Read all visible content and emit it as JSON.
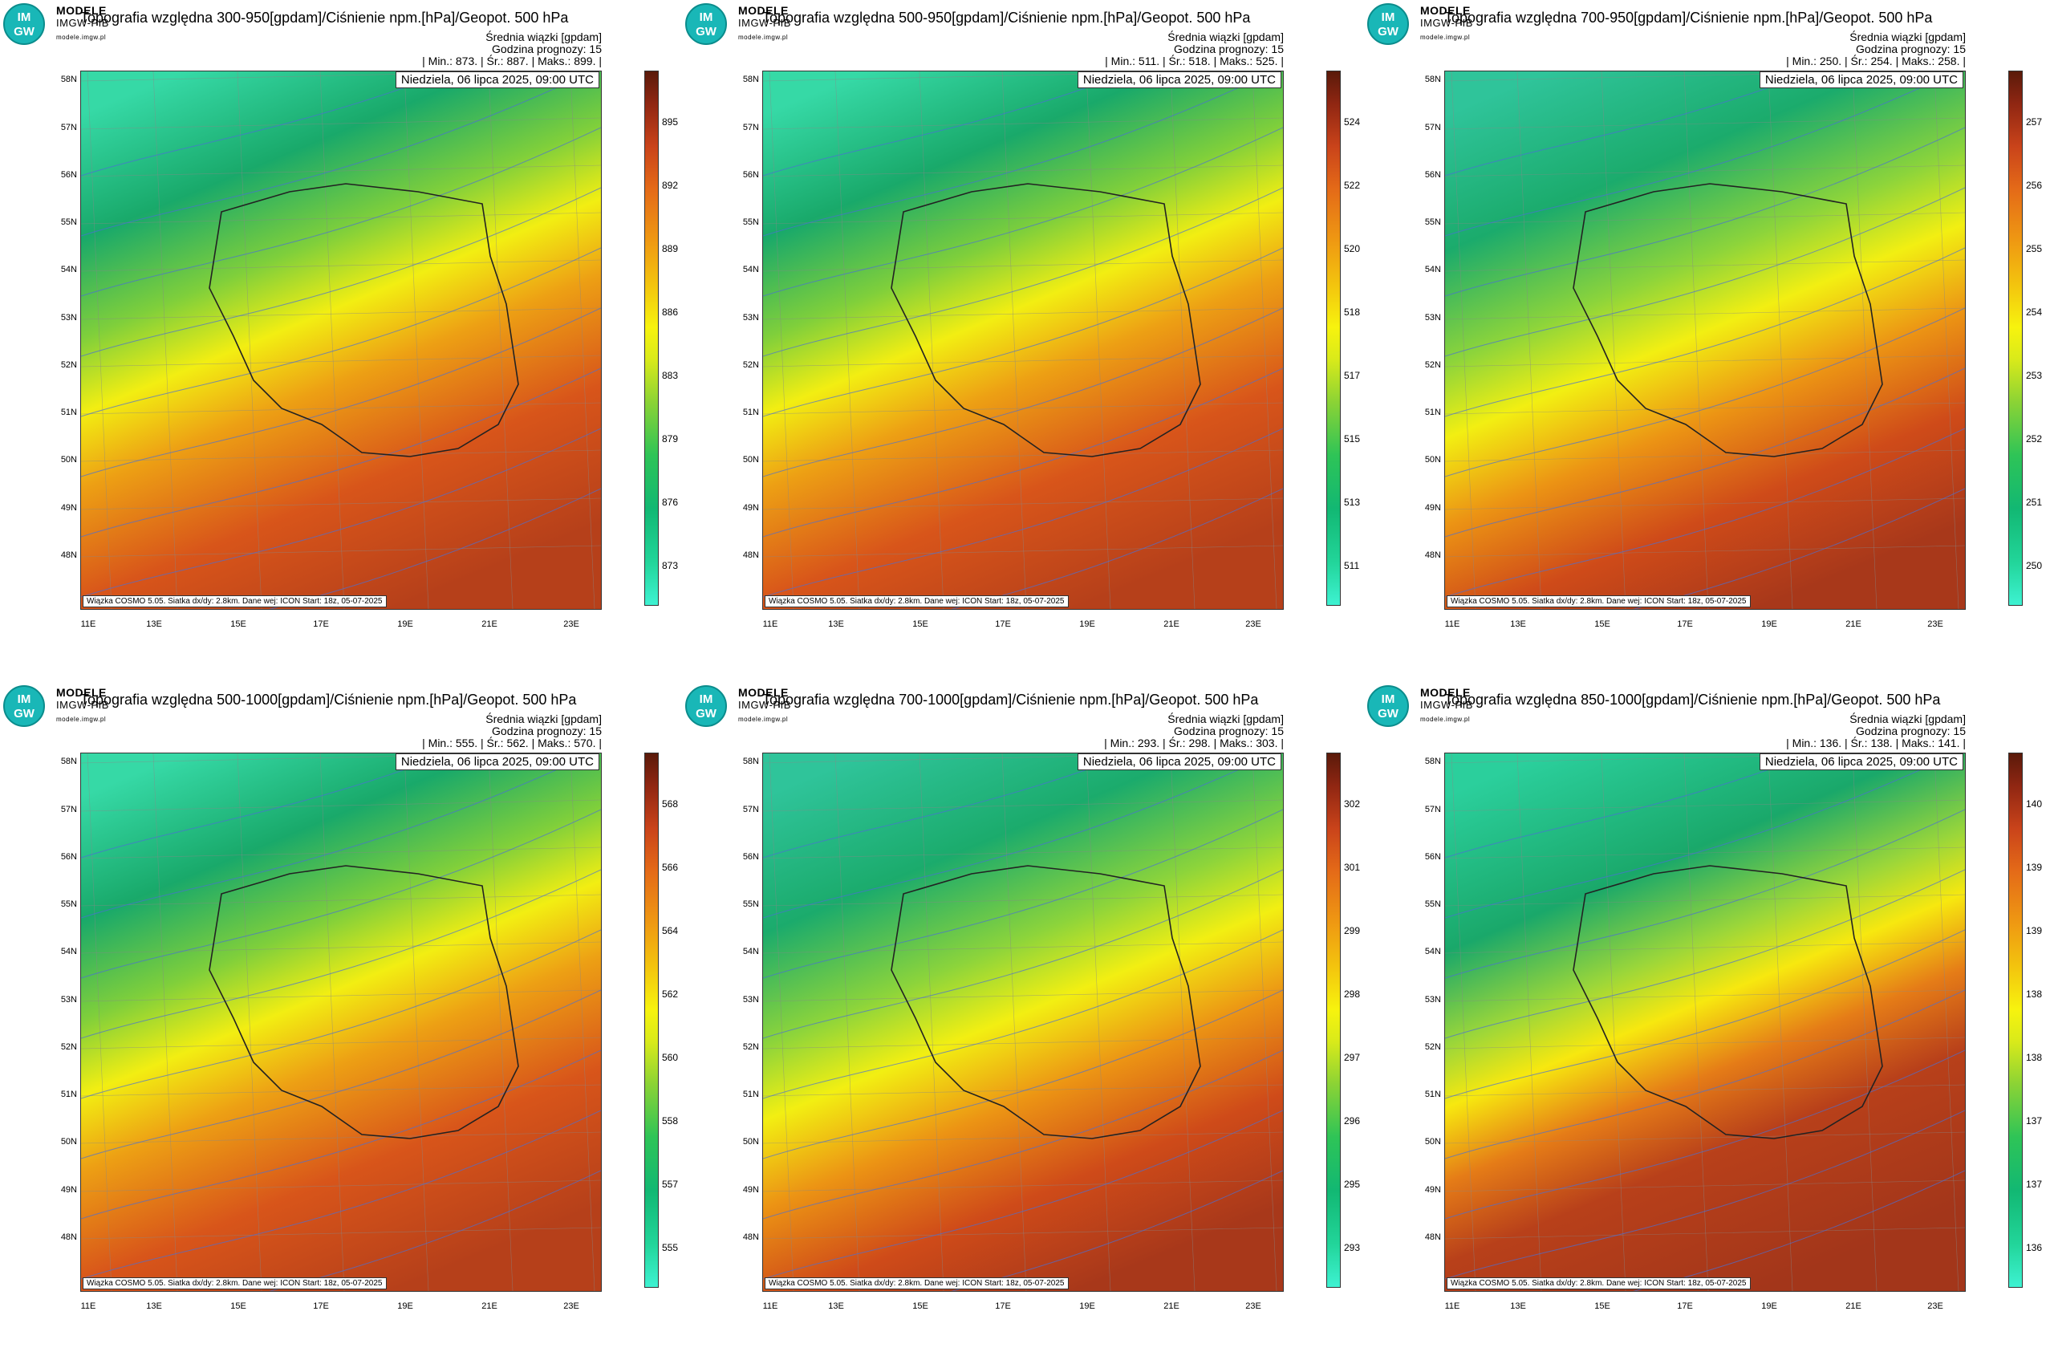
{
  "brand": {
    "name": "MODELE",
    "sub": "IMGW-PIB",
    "url": "modele.imgw.pl",
    "logo_text_top": "IM",
    "logo_text_bottom": "GW"
  },
  "common": {
    "subtitle": "Średnia wiązki [gpdam]",
    "forecast_hour": "Godzina prognozy: 15",
    "date": "Niedziela, 06 lipca 2025, 09:00 UTC",
    "footer": "Wiązka COSMO 5.05. Siatka dx/dy: 2.8km. Dane wej: ICON Start: 18z, 05-07-2025",
    "lat_labels": [
      "58N",
      "57N",
      "56N",
      "55N",
      "54N",
      "53N",
      "52N",
      "51N",
      "50N",
      "49N",
      "48N"
    ],
    "lon_labels": [
      "11E",
      "13E",
      "15E",
      "17E",
      "19E",
      "21E",
      "23E"
    ]
  },
  "colors": {
    "low": "#3ef2d2",
    "mid": "#f7f30e",
    "high": "#d2521a",
    "top": "#5a1a0a"
  },
  "panels": [
    {
      "title": "Topografia względna 300-950[gpdam]/Ciśnienie npm.[hPa]/Geopot. 500 hPa",
      "stats": "| Min.:    873. | Śr.:    887. | Maks.:    899. |",
      "cbar_ticks": [
        "873",
        "876",
        "879",
        "883",
        "886",
        "889",
        "892",
        "895"
      ],
      "gradient": "p300"
    },
    {
      "title": "Topografia względna 500-950[gpdam]/Ciśnienie npm.[hPa]/Geopot. 500 hPa",
      "stats": "| Min.:    511. | Śr.:    518. | Maks.:    525. |",
      "cbar_ticks": [
        "511",
        "513",
        "515",
        "517",
        "518",
        "520",
        "522",
        "524"
      ],
      "gradient": "p500"
    },
    {
      "title": "Topografia względna 700-950[gpdam]/Ciśnienie npm.[hPa]/Geopot. 500 hPa",
      "stats": "| Min.:    250. | Śr.:    254. | Maks.:    258. |",
      "cbar_ticks": [
        "250",
        "251",
        "252",
        "253",
        "254",
        "255",
        "256",
        "257"
      ],
      "gradient": "p700"
    },
    {
      "title": "Topografia względna 500-1000[gpdam]/Ciśnienie npm.[hPa]/Geopot. 500 hPa",
      "stats": "| Min.:    555. | Śr.:    562. | Maks.:    570. |",
      "cbar_ticks": [
        "555",
        "557",
        "558",
        "560",
        "562",
        "564",
        "566",
        "568"
      ],
      "gradient": "p500b"
    },
    {
      "title": "Topografia względna 700-1000[gpdam]/Ciśnienie npm.[hPa]/Geopot. 500 hPa",
      "stats": "| Min.:    293. | Śr.:    298. | Maks.:    303. |",
      "cbar_ticks": [
        "293",
        "295",
        "296",
        "297",
        "298",
        "299",
        "301",
        "302"
      ],
      "gradient": "p700b"
    },
    {
      "title": "Topografia względna 850-1000[gpdam]/Ciśnienie npm.[hPa]/Geopot. 500 hPa",
      "stats": "| Min.:    136. | Śr.:    138. | Maks.:    141. |",
      "cbar_ticks": [
        "136",
        "137",
        "137",
        "138",
        "138",
        "139",
        "139",
        "140"
      ],
      "gradient": "p850"
    }
  ]
}
